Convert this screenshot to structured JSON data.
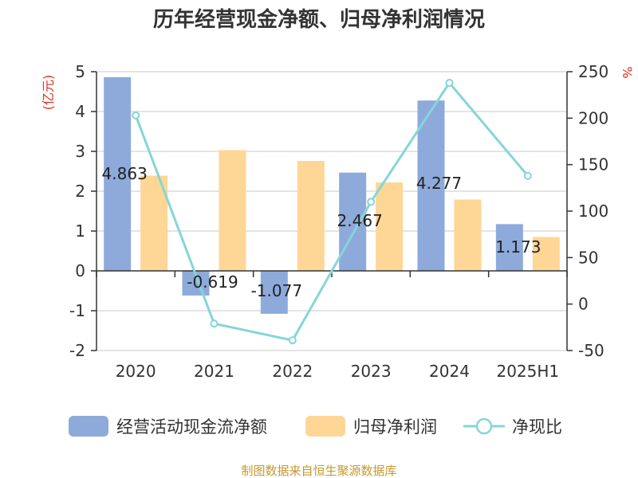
{
  "chart_data": {
    "type": "bar",
    "title": "历年经营现金净额、归母净利润情况",
    "categories": [
      "2020",
      "2021",
      "2022",
      "2023",
      "2024",
      "2025H1"
    ],
    "series": [
      {
        "name": "经营活动现金流净额",
        "type": "bar",
        "axis": "left",
        "color": "#8eaadb",
        "values": [
          4.863,
          -0.619,
          -1.077,
          2.467,
          4.277,
          1.173
        ],
        "labels": [
          "4.863",
          "-0.619",
          "-1.077",
          "2.467",
          "4.277",
          "1.173"
        ]
      },
      {
        "name": "归母净利润",
        "type": "bar",
        "axis": "left",
        "color": "#fed696",
        "values": [
          2.39,
          3.03,
          2.76,
          2.22,
          1.79,
          0.85
        ]
      },
      {
        "name": "净现比",
        "type": "line",
        "axis": "right",
        "color": "#86d5d8",
        "values": [
          203,
          -21,
          -39,
          110,
          238,
          138
        ]
      }
    ],
    "ylabel_left": "(亿元)",
    "ylabel_right": "%",
    "left_axis": {
      "min": -2,
      "max": 5,
      "ticks": [
        "-2",
        "-1",
        "0",
        "1",
        "2",
        "3",
        "4",
        "5"
      ]
    },
    "right_axis": {
      "min": -50,
      "max": 250,
      "ticks": [
        "-50",
        "0",
        "50",
        "100",
        "150",
        "200",
        "250"
      ]
    },
    "grid": true,
    "legend_position": "bottom",
    "unit_color": "#e0301e",
    "source": "制图数据来自恒生聚源数据库",
    "source_color": "#c49a2c"
  }
}
